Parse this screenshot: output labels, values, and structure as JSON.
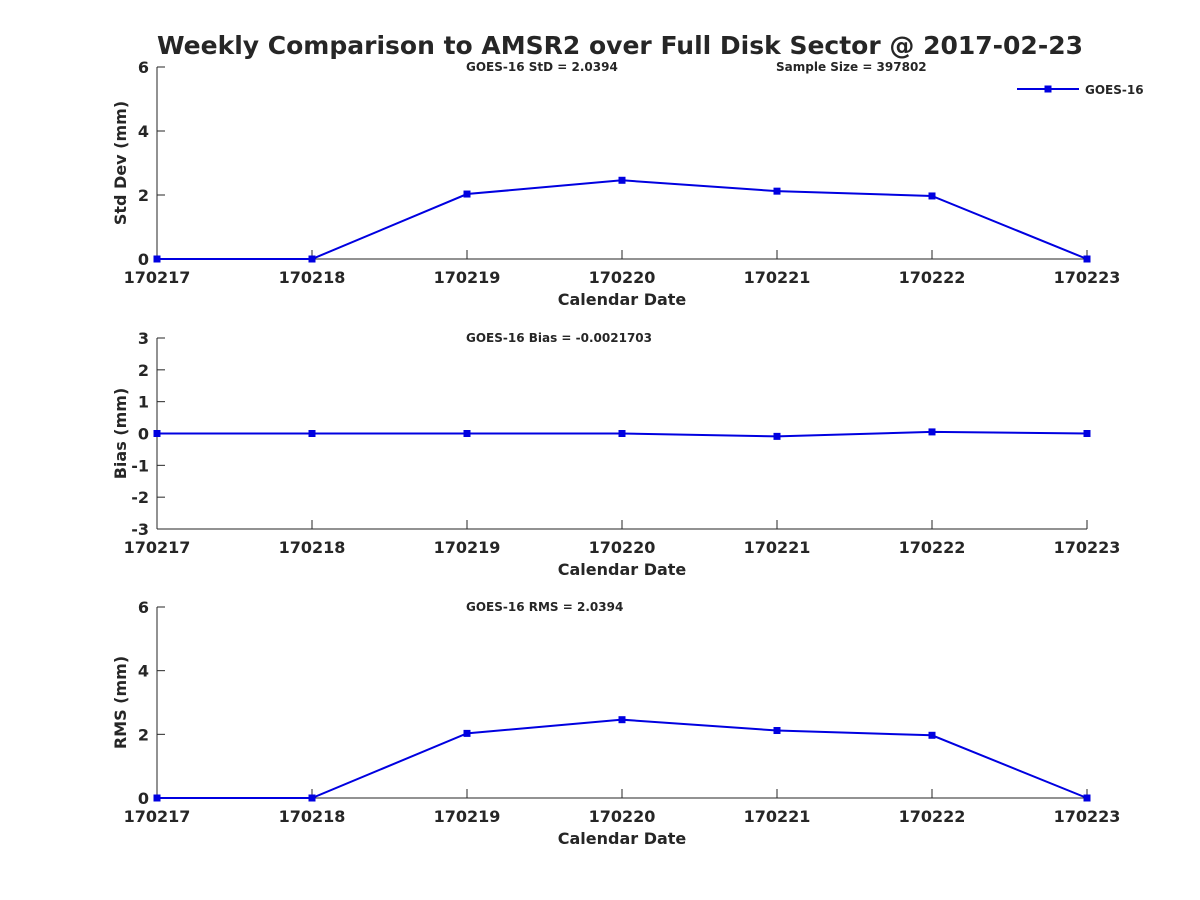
{
  "chart_data": {
    "title": "Weekly Comparison to AMSR2 over Full Disk Sector @ 2017-02-23",
    "series_color": "#0000e0",
    "legend": {
      "label": "GOES-16",
      "placement": "top-right"
    },
    "panels": [
      {
        "type": "line",
        "xlabel": "Calendar Date",
        "ylabel": "Std Dev (mm)",
        "categories": [
          "170217",
          "170218",
          "170219",
          "170220",
          "170221",
          "170222",
          "170223"
        ],
        "ylim": [
          0,
          6
        ],
        "yticks": [
          "0",
          "2",
          "4",
          "6"
        ],
        "series": [
          {
            "name": "GOES-16",
            "values": [
              0,
              0,
              2.03,
              2.46,
              2.12,
              1.97,
              0
            ]
          }
        ],
        "annotations": [
          "GOES-16 StD = 2.0394",
          "Sample Size = 397802"
        ],
        "show_legend": true
      },
      {
        "type": "line",
        "xlabel": "Calendar Date",
        "ylabel": "Bias (mm)",
        "categories": [
          "170217",
          "170218",
          "170219",
          "170220",
          "170221",
          "170222",
          "170223"
        ],
        "ylim": [
          -3,
          3
        ],
        "yticks": [
          "-3",
          "-2",
          "-1",
          "0",
          "1",
          "2",
          "3"
        ],
        "series": [
          {
            "name": "GOES-16",
            "values": [
              0,
              0,
              0,
              0,
              -0.09,
              0.05,
              0
            ]
          }
        ],
        "annotations": [
          "GOES-16 Bias  = -0.0021703"
        ],
        "show_legend": false
      },
      {
        "type": "line",
        "xlabel": "Calendar Date",
        "ylabel": "RMS (mm)",
        "categories": [
          "170217",
          "170218",
          "170219",
          "170220",
          "170221",
          "170222",
          "170223"
        ],
        "ylim": [
          0,
          6
        ],
        "yticks": [
          "0",
          "2",
          "4",
          "6"
        ],
        "series": [
          {
            "name": "GOES-16",
            "values": [
              0,
              0,
              2.03,
              2.46,
              2.12,
              1.97,
              0
            ]
          }
        ],
        "annotations": [
          "GOES-16 RMS = 2.0394"
        ],
        "show_legend": false
      }
    ]
  }
}
